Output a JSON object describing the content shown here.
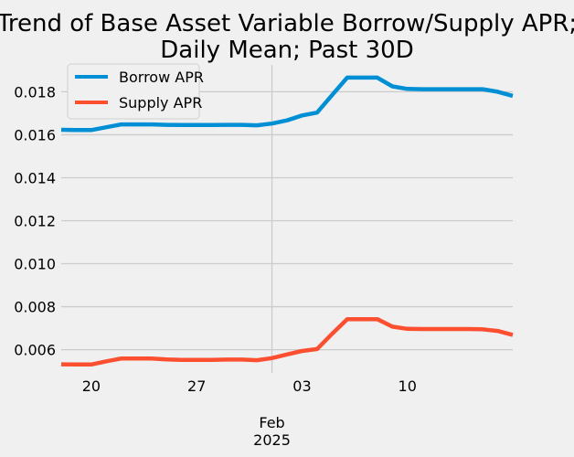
{
  "chart_data": {
    "type": "line",
    "title_lines": [
      "Trend of Base Asset Variable Borrow/Supply APR;",
      "Daily Mean; Past 30D"
    ],
    "x": [
      "2025-01-18",
      "2025-01-19",
      "2025-01-20",
      "2025-01-21",
      "2025-01-22",
      "2025-01-23",
      "2025-01-24",
      "2025-01-25",
      "2025-01-26",
      "2025-01-27",
      "2025-01-28",
      "2025-01-29",
      "2025-01-30",
      "2025-01-31",
      "2025-02-01",
      "2025-02-02",
      "2025-02-03",
      "2025-02-04",
      "2025-02-05",
      "2025-02-06",
      "2025-02-07",
      "2025-02-08",
      "2025-02-09",
      "2025-02-10",
      "2025-02-11",
      "2025-02-12",
      "2025-02-13",
      "2025-02-14",
      "2025-02-15",
      "2025-02-16",
      "2025-02-17"
    ],
    "series": [
      {
        "name": "Borrow APR",
        "color": "#008fd5",
        "values": [
          0.01623,
          0.01622,
          0.01622,
          0.01635,
          0.01648,
          0.01648,
          0.01648,
          0.01646,
          0.01645,
          0.01645,
          0.01645,
          0.01646,
          0.01646,
          0.01644,
          0.01652,
          0.01667,
          0.0169,
          0.01703,
          0.01785,
          0.01866,
          0.01866,
          0.01866,
          0.01825,
          0.01813,
          0.01812,
          0.01812,
          0.01812,
          0.01812,
          0.01812,
          0.018,
          0.01781
        ]
      },
      {
        "name": "Supply APR",
        "color": "#fc4f30",
        "values": [
          0.00532,
          0.00531,
          0.00531,
          0.00546,
          0.00559,
          0.00559,
          0.00559,
          0.00555,
          0.00553,
          0.00553,
          0.00553,
          0.00554,
          0.00554,
          0.00551,
          0.00561,
          0.00578,
          0.00594,
          0.00603,
          0.00674,
          0.00742,
          0.00742,
          0.00742,
          0.00707,
          0.00697,
          0.00696,
          0.00696,
          0.00696,
          0.00696,
          0.00695,
          0.00687,
          0.00669
        ]
      }
    ],
    "xlim": [
      "2025-01-18",
      "2025-02-17"
    ],
    "ylim": [
      0.00492,
      0.01925
    ],
    "yticks": [
      0.006,
      0.008,
      0.01,
      0.012,
      0.014,
      0.016,
      0.018
    ],
    "ytick_labels": [
      "0.006",
      "0.008",
      "0.010",
      "0.012",
      "0.014",
      "0.016",
      "0.018"
    ],
    "xticks": [
      "2025-01-20",
      "2025-01-27",
      "2025-02-03",
      "2025-02-10"
    ],
    "xtick_labels": [
      "20",
      "27",
      "03",
      "10"
    ],
    "major_xtick": "2025-02-01",
    "major_xtick_label": [
      "Feb",
      "2025"
    ],
    "grid": true,
    "legend_position": "upper-left",
    "background": "#f0f0f0",
    "grid_color": "#cbcbcb"
  }
}
